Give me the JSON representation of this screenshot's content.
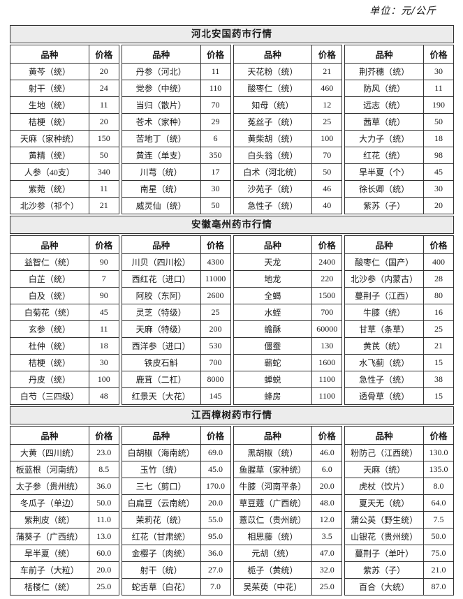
{
  "page": {
    "unit_label": "单位：元/公斤"
  },
  "colors": {
    "title_bar_bg": "#ececec",
    "border": "#333333",
    "text": "#1a1a1a"
  },
  "table": {
    "column_headers": [
      "品种",
      "价格"
    ],
    "sections": [
      {
        "title": "河北安国药市行情",
        "columns": [
          [
            [
              "黄芩（统）",
              "20"
            ],
            [
              "射干（统）",
              "24"
            ],
            [
              "生地（统）",
              "11"
            ],
            [
              "桔梗（统）",
              "20"
            ],
            [
              "天麻（家种统）",
              "150"
            ],
            [
              "黄精（统）",
              "50"
            ],
            [
              "人参（40支）",
              "340"
            ],
            [
              "紫菀（统）",
              "11"
            ],
            [
              "北沙参（祁个）",
              "21"
            ]
          ],
          [
            [
              "丹参（河北）",
              "11"
            ],
            [
              "党参（中统）",
              "110"
            ],
            [
              "当归（散片）",
              "70"
            ],
            [
              "苍术（家种）",
              "29"
            ],
            [
              "苦地丁（统）",
              "6"
            ],
            [
              "黄连（单支）",
              "350"
            ],
            [
              "川芎（统）",
              "17"
            ],
            [
              "南星（统）",
              "30"
            ],
            [
              "威灵仙（统）",
              "50"
            ]
          ],
          [
            [
              "天花粉（统）",
              "21"
            ],
            [
              "酸枣仁（统）",
              "460"
            ],
            [
              "知母（统）",
              "12"
            ],
            [
              "菟丝子（统）",
              "25"
            ],
            [
              "黄柴胡（统）",
              "100"
            ],
            [
              "白头翁（统）",
              "70"
            ],
            [
              "白术（河北统）",
              "50"
            ],
            [
              "沙苑子（统）",
              "46"
            ],
            [
              "急性子（统）",
              "40"
            ]
          ],
          [
            [
              "荆芥穗（统）",
              "30"
            ],
            [
              "防风（统）",
              "11"
            ],
            [
              "远志（统）",
              "190"
            ],
            [
              "茜草（统）",
              "50"
            ],
            [
              "大力子（统）",
              "18"
            ],
            [
              "红花（统）",
              "98"
            ],
            [
              "旱半夏（个）",
              "45"
            ],
            [
              "徐长卿（统）",
              "30"
            ],
            [
              "紫苏（子）",
              "20"
            ]
          ]
        ]
      },
      {
        "title": "安徽亳州药市行情",
        "columns": [
          [
            [
              "益智仁（统）",
              "90"
            ],
            [
              "白芷（统）",
              "7"
            ],
            [
              "白及（统）",
              "90"
            ],
            [
              "白菊花（统）",
              "45"
            ],
            [
              "玄参（统）",
              "11"
            ],
            [
              "杜仲（统）",
              "18"
            ],
            [
              "桔梗（统）",
              "30"
            ],
            [
              "丹皮（统）",
              "100"
            ],
            [
              "白芍（三四级）",
              "48"
            ]
          ],
          [
            [
              "川贝（四川松）",
              "4300"
            ],
            [
              "西红花（进口）",
              "11000"
            ],
            [
              "阿胶（东阿）",
              "2600"
            ],
            [
              "灵芝（特级）",
              "25"
            ],
            [
              "天麻（特级）",
              "200"
            ],
            [
              "西洋参（进口）",
              "530"
            ],
            [
              "铁皮石斛",
              "700"
            ],
            [
              "鹿茸（二杠）",
              "8000"
            ],
            [
              "红景天（大花）",
              "145"
            ]
          ],
          [
            [
              "天龙",
              "2400"
            ],
            [
              "地龙",
              "220"
            ],
            [
              "全蝎",
              "1500"
            ],
            [
              "水蛭",
              "700"
            ],
            [
              "蟾酥",
              "60000"
            ],
            [
              "僵蚕",
              "130"
            ],
            [
              "蕲蛇",
              "1600"
            ],
            [
              "蝉蜕",
              "1100"
            ],
            [
              "蜂房",
              "1100"
            ]
          ],
          [
            [
              "酸枣仁（国产）",
              "400"
            ],
            [
              "北沙参（内蒙古）",
              "28"
            ],
            [
              "蔓荆子（江西）",
              "80"
            ],
            [
              "牛膝（统）",
              "16"
            ],
            [
              "甘草（条草）",
              "25"
            ],
            [
              "黄芪（统）",
              "21"
            ],
            [
              "水飞蓟（统）",
              "15"
            ],
            [
              "急性子（统）",
              "38"
            ],
            [
              "透骨草（统）",
              "15"
            ]
          ]
        ]
      },
      {
        "title": "江西樟树药市行情",
        "columns": [
          [
            [
              "大黄（四川统）",
              "23.0"
            ],
            [
              "板蓝根（河南统）",
              "8.5"
            ],
            [
              "太子参（贵州统）",
              "36.0"
            ],
            [
              "冬瓜子（单边）",
              "50.0"
            ],
            [
              "紫荆皮（统）",
              "11.0"
            ],
            [
              "蒲葵子（广西统）",
              "13.0"
            ],
            [
              "旱半夏（统）",
              "60.0"
            ],
            [
              "车前子（大粒）",
              "20.0"
            ],
            [
              "栝楼仁（统）",
              "25.0"
            ]
          ],
          [
            [
              "白胡椒（海南统）",
              "69.0"
            ],
            [
              "玉竹（统）",
              "45.0"
            ],
            [
              "三七（剪口）",
              "170.0"
            ],
            [
              "白扁豆（云南统）",
              "20.0"
            ],
            [
              "茉莉花（统）",
              "55.0"
            ],
            [
              "红花（甘肃统）",
              "95.0"
            ],
            [
              "金樱子（肉统）",
              "36.0"
            ],
            [
              "射干（统）",
              "27.0"
            ],
            [
              "蛇舌草（白花）",
              "7.0"
            ]
          ],
          [
            [
              "黑胡椒（统）",
              "46.0"
            ],
            [
              "鱼腥草（家种统）",
              "6.0"
            ],
            [
              "牛膝（河南平条）",
              "20.0"
            ],
            [
              "草豆蔻（广西统）",
              "48.0"
            ],
            [
              "薏苡仁（贵州统）",
              "12.0"
            ],
            [
              "相思藤（统）",
              "3.5"
            ],
            [
              "元胡（统）",
              "47.0"
            ],
            [
              "栀子（黄统）",
              "32.0"
            ],
            [
              "吴茱萸（中花）",
              "25.0"
            ]
          ],
          [
            [
              "粉防己（江西统）",
              "130.0"
            ],
            [
              "天麻（统）",
              "135.0"
            ],
            [
              "虎杖（饮片）",
              "8.0"
            ],
            [
              "夏天无（统）",
              "64.0"
            ],
            [
              "蒲公英（野生统）",
              "7.5"
            ],
            [
              "山银花（贵州统）",
              "50.0"
            ],
            [
              "蔓荆子（单叶）",
              "75.0"
            ],
            [
              "紫苏（子）",
              "21.0"
            ],
            [
              "百合（大统）",
              "87.0"
            ]
          ]
        ]
      }
    ]
  }
}
